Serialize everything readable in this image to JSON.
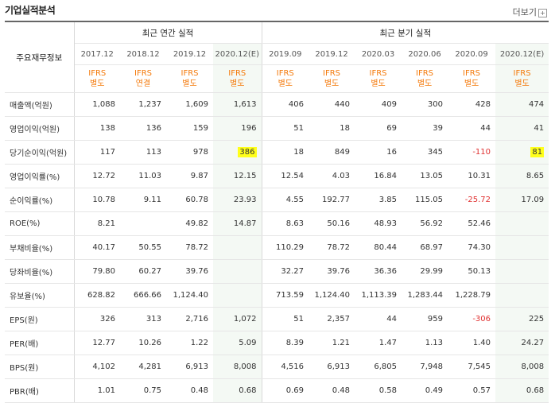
{
  "header": {
    "title": "기업실적분석",
    "more_label": "더보기"
  },
  "table": {
    "corner_label": "주요재무정보",
    "group_annual": "최근 연간 실적",
    "group_quarter": "최근 분기 실적",
    "periods": [
      "2017.12",
      "2018.12",
      "2019.12",
      "2020.12(E)",
      "2019.09",
      "2019.12",
      "2020.03",
      "2020.06",
      "2020.09",
      "2020.12(E)"
    ],
    "standards": [
      [
        "IFRS",
        "별도"
      ],
      [
        "IFRS",
        "연결"
      ],
      [
        "IFRS",
        "별도"
      ],
      [
        "IFRS",
        "별도"
      ],
      [
        "IFRS",
        "별도"
      ],
      [
        "IFRS",
        "별도"
      ],
      [
        "IFRS",
        "별도"
      ],
      [
        "IFRS",
        "별도"
      ],
      [
        "IFRS",
        "별도"
      ],
      [
        "IFRS",
        "별도"
      ]
    ],
    "rows": [
      {
        "label": "매출액(억원)",
        "values": [
          "1,088",
          "1,237",
          "1,609",
          "1,613",
          "406",
          "440",
          "409",
          "300",
          "428",
          "474"
        ]
      },
      {
        "label": "영업이익(억원)",
        "values": [
          "138",
          "136",
          "159",
          "196",
          "51",
          "18",
          "69",
          "39",
          "44",
          "41"
        ]
      },
      {
        "label": "당기순이익(억원)",
        "values": [
          "117",
          "113",
          "978",
          "386",
          "18",
          "849",
          "16",
          "345",
          "-110",
          "81"
        ]
      },
      {
        "label": "영업이익률(%)",
        "values": [
          "12.72",
          "11.03",
          "9.87",
          "12.15",
          "12.54",
          "4.03",
          "16.84",
          "13.05",
          "10.31",
          "8.65"
        ]
      },
      {
        "label": "순이익률(%)",
        "values": [
          "10.78",
          "9.11",
          "60.78",
          "23.93",
          "4.55",
          "192.77",
          "3.85",
          "115.05",
          "-25.72",
          "17.09"
        ]
      },
      {
        "label": "ROE(%)",
        "values": [
          "8.21",
          "",
          "49.82",
          "14.87",
          "8.63",
          "50.16",
          "48.93",
          "56.92",
          "52.46",
          ""
        ]
      },
      {
        "label": "부채비율(%)",
        "values": [
          "40.17",
          "50.55",
          "78.72",
          "",
          "110.29",
          "78.72",
          "80.44",
          "68.97",
          "74.30",
          ""
        ]
      },
      {
        "label": "당좌비율(%)",
        "values": [
          "79.80",
          "60.27",
          "39.76",
          "",
          "32.27",
          "39.76",
          "36.36",
          "29.99",
          "50.13",
          ""
        ]
      },
      {
        "label": "유보율(%)",
        "values": [
          "628.82",
          "666.66",
          "1,124.40",
          "",
          "713.59",
          "1,124.40",
          "1,113.39",
          "1,283.44",
          "1,228.79",
          ""
        ]
      },
      {
        "label": "EPS(원)",
        "values": [
          "326",
          "313",
          "2,716",
          "1,072",
          "51",
          "2,357",
          "44",
          "959",
          "-306",
          "225"
        ]
      },
      {
        "label": "PER(배)",
        "values": [
          "12.77",
          "10.26",
          "1.22",
          "5.09",
          "8.39",
          "1.21",
          "1.47",
          "1.13",
          "1.40",
          "24.27"
        ]
      },
      {
        "label": "BPS(원)",
        "values": [
          "4,102",
          "4,281",
          "6,913",
          "8,008",
          "4,516",
          "6,913",
          "6,805",
          "7,948",
          "7,545",
          "8,008"
        ]
      },
      {
        "label": "PBR(배)",
        "values": [
          "1.01",
          "0.75",
          "0.48",
          "0.68",
          "0.69",
          "0.48",
          "0.58",
          "0.49",
          "0.57",
          "0.68"
        ]
      }
    ],
    "highlight_color": "#ffff1a",
    "negative_color": "#e03131",
    "standard_color": "#f47a0b"
  }
}
